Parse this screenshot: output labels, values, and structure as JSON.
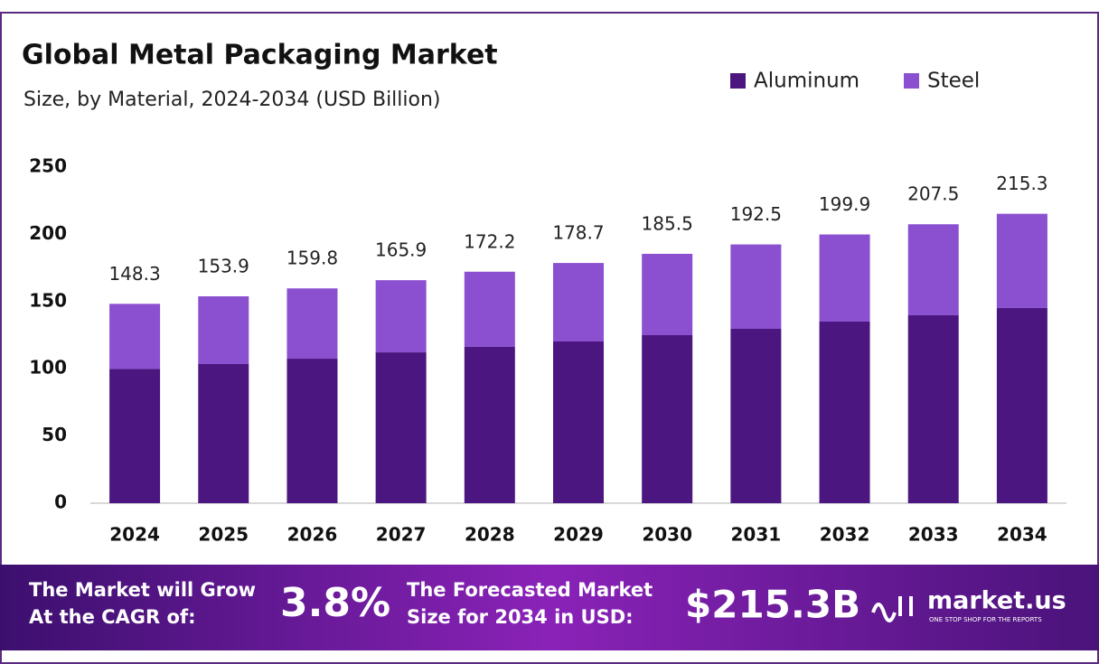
{
  "chart_data": {
    "type": "stacked_bar",
    "title": "Global Metal Packaging Market",
    "subtitle": "Size, by Material, 2024-2034 (USD Billion)",
    "categories": [
      "2024",
      "2025",
      "2026",
      "2027",
      "2028",
      "2029",
      "2030",
      "2031",
      "2032",
      "2033",
      "2034"
    ],
    "series": [
      {
        "name": "Aluminum",
        "color": "#4b1680",
        "values": [
          100,
          103.5,
          107.5,
          112.2,
          116.3,
          120.3,
          125,
          129.7,
          135.1,
          139.8,
          145.2
        ]
      },
      {
        "name": "Steel",
        "color": "#8a50d0",
        "values": [
          48.3,
          50.4,
          52.3,
          53.7,
          55.9,
          58.4,
          60.5,
          62.8,
          64.8,
          67.7,
          70.1
        ]
      }
    ],
    "totals": [
      148.3,
      153.9,
      159.8,
      165.9,
      172.2,
      178.7,
      185.5,
      192.5,
      199.9,
      207.5,
      215.3
    ],
    "ylim": [
      0,
      250
    ],
    "yticks": [
      0,
      50,
      100,
      150,
      200,
      250
    ],
    "grid": false,
    "legend": "top-right"
  },
  "footer": {
    "cagr_text": [
      "The Market will Grow",
      "At the CAGR of:"
    ],
    "cagr": "3.8%",
    "forecast_text": [
      "The Forecasted Market",
      "Size for 2034 in USD:"
    ],
    "forecast": "$215.3B",
    "brand": "market.us",
    "tagline": "ONE STOP SHOP FOR THE REPORTS"
  }
}
